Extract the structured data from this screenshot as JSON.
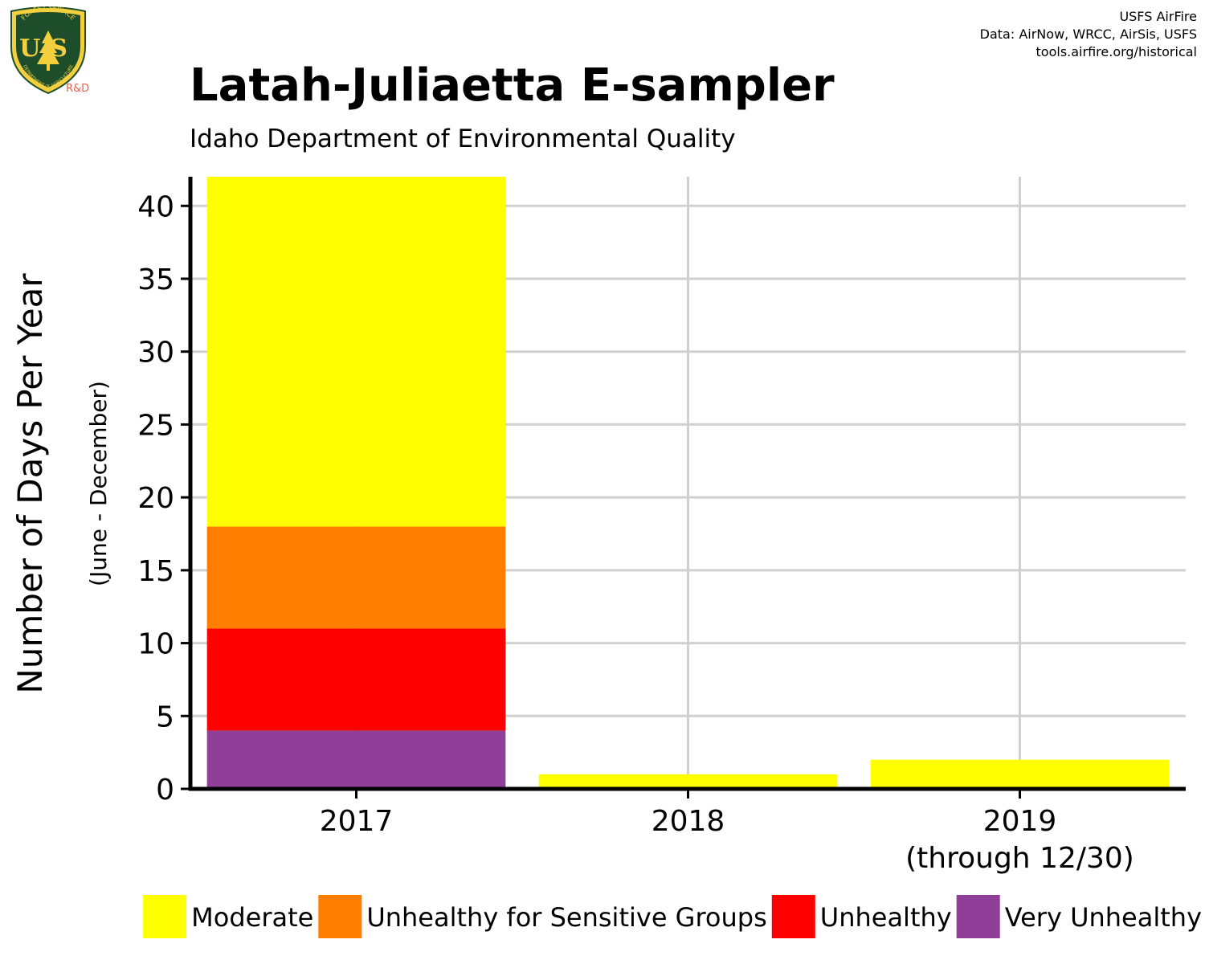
{
  "header": {
    "title": "Latah-Juliaetta E-sampler",
    "subtitle": "Idaho Department of Environmental Quality"
  },
  "credits": {
    "line1": "USFS AirFire",
    "line2": "Data: AirNow, WRCC, AirSis, USFS",
    "line3": "tools.airfire.org/historical"
  },
  "logo": {
    "top_text": "FOREST SERVICE",
    "letters": "US",
    "bottom_text": "DEPARTMENT OF AGRICULTURE",
    "suffix": "R&D"
  },
  "colors": {
    "moderate": "#ffff00",
    "usg": "#ff7e00",
    "unhealthy": "#ff0000",
    "very_unhealthy": "#8f3f97",
    "grid": "#d0d0d0",
    "logo_green": "#1e4d2b",
    "logo_gold": "#f4d03f",
    "logo_rd": "#e8604c"
  },
  "chart_data": {
    "type": "bar",
    "stacked": true,
    "categories": [
      "2017",
      "2018",
      "2019"
    ],
    "category_sublabels": [
      "",
      "",
      "(through 12/30)"
    ],
    "series": [
      {
        "name": "Very Unhealthy",
        "color": "#8f3f97",
        "values": [
          4,
          0,
          0
        ]
      },
      {
        "name": "Unhealthy",
        "color": "#ff0000",
        "values": [
          7,
          0,
          0
        ]
      },
      {
        "name": "Unhealthy for Sensitive Groups",
        "color": "#ff7e00",
        "values": [
          7,
          0,
          0
        ]
      },
      {
        "name": "Moderate",
        "color": "#ffff00",
        "values": [
          24,
          1,
          2
        ]
      }
    ],
    "legend_order": [
      "Moderate",
      "Unhealthy for Sensitive Groups",
      "Unhealthy",
      "Very Unhealthy"
    ],
    "ylabel": "Number of Days Per Year",
    "ylabel_sub": "(June - December)",
    "xlabel": "",
    "ylim": [
      0,
      42
    ],
    "yticks": [
      0,
      5,
      10,
      15,
      20,
      25,
      30,
      35,
      40
    ],
    "grid": true,
    "legend_position": "bottom"
  }
}
